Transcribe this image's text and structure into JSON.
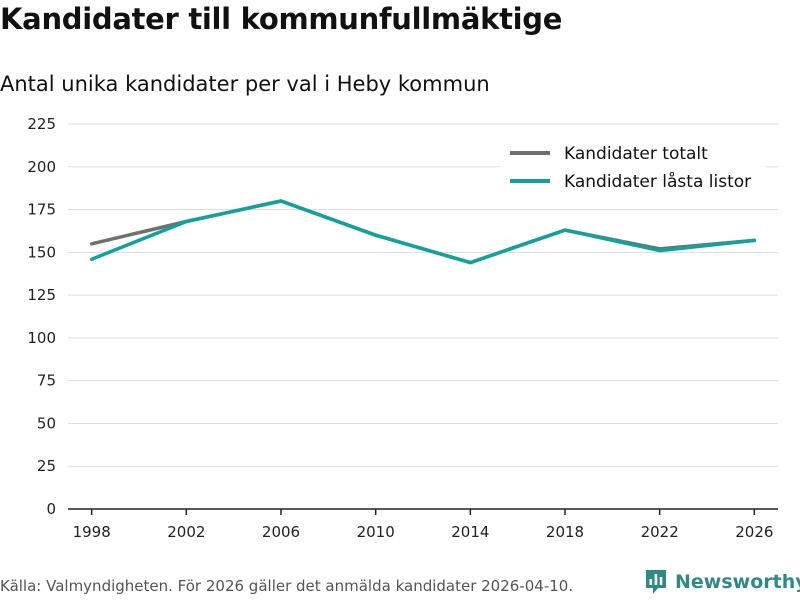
{
  "header": {
    "title": "Kandidater till kommunfullmäktige",
    "subtitle": "Antal unika kandidater per val i Heby kommun"
  },
  "footer": {
    "source": "Källa: Valmyndigheten. För 2026 gäller det anmälda kandidater 2026-04-10.",
    "brand": "Newsworthy"
  },
  "colors": {
    "series_total": "#707070",
    "series_locked": "#11a39b",
    "brand": "#2e8b83",
    "grid": "#dddddd",
    "axis": "#222222"
  },
  "chart_data": {
    "type": "line",
    "title": "Kandidater till kommunfullmäktige",
    "subtitle": "Antal unika kandidater per val i Heby kommun",
    "x": [
      1998,
      2002,
      2006,
      2010,
      2014,
      2018,
      2022,
      2026
    ],
    "series": [
      {
        "name": "Kandidater totalt",
        "values": [
          155,
          168,
          180,
          160,
          144,
          163,
          152,
          157
        ]
      },
      {
        "name": "Kandidater låsta listor",
        "values": [
          146,
          168,
          180,
          160,
          144,
          163,
          151,
          157
        ]
      }
    ],
    "xlim": [
      1997,
      2027
    ],
    "ylim": [
      0,
      225
    ],
    "yticks": [
      0,
      25,
      50,
      75,
      100,
      125,
      150,
      175,
      200,
      225
    ],
    "xlabel": "",
    "ylabel": "",
    "grid": true,
    "legend": "top-right"
  }
}
